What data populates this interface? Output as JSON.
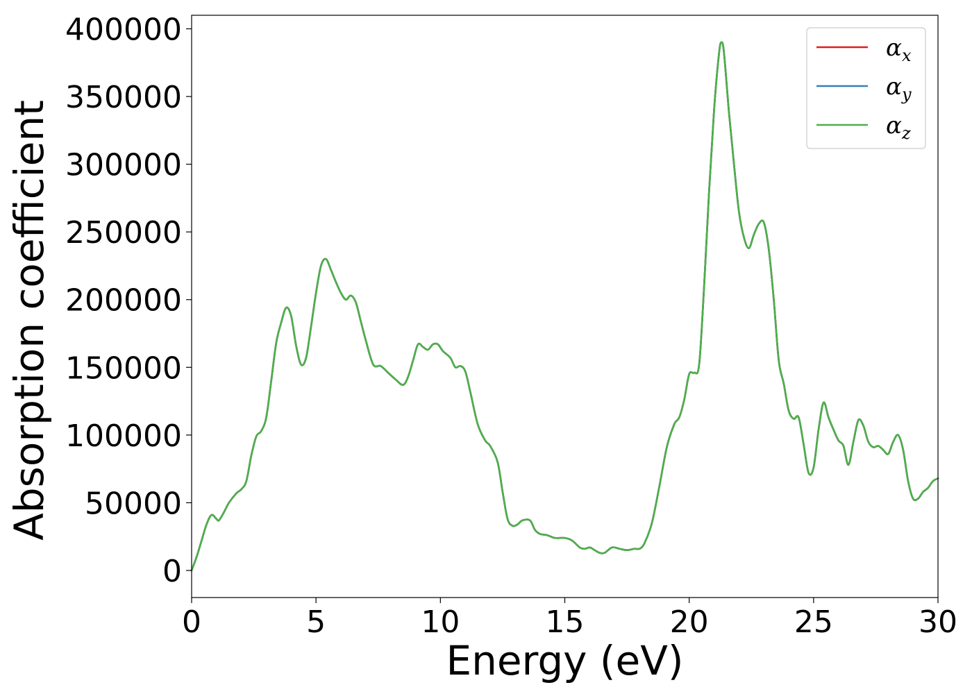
{
  "colors": {
    "alpha_x": "#e41a1c",
    "alpha_y": "#377eb8",
    "alpha_z": "#4daf4a"
  },
  "chart_data": {
    "type": "line",
    "title": "",
    "xlabel": "Energy (eV)",
    "ylabel": "Absorption coefficient",
    "xlim": [
      0,
      30
    ],
    "ylim": [
      -20000,
      410000
    ],
    "xticks": [
      0,
      5,
      10,
      15,
      20,
      25,
      30
    ],
    "xtick_labels": [
      "0",
      "5",
      "10",
      "15",
      "20",
      "25",
      "30"
    ],
    "yticks": [
      0,
      50000,
      100000,
      150000,
      200000,
      250000,
      300000,
      350000,
      400000
    ],
    "ytick_labels": [
      "0",
      "50000",
      "100000",
      "150000",
      "200000",
      "250000",
      "300000",
      "350000",
      "400000"
    ],
    "grid": false,
    "legend_position": "top-right",
    "x": [
      0,
      0.2,
      0.4,
      0.6,
      0.8,
      1.0,
      1.1,
      1.3,
      1.5,
      1.8,
      2.0,
      2.2,
      2.4,
      2.6,
      2.8,
      3.0,
      3.2,
      3.4,
      3.6,
      3.8,
      4.0,
      4.2,
      4.4,
      4.6,
      4.8,
      5.0,
      5.2,
      5.4,
      5.6,
      5.8,
      6.0,
      6.2,
      6.4,
      6.6,
      6.8,
      7.0,
      7.3,
      7.6,
      7.9,
      8.2,
      8.5,
      8.7,
      8.9,
      9.1,
      9.3,
      9.5,
      9.7,
      9.9,
      10.1,
      10.4,
      10.6,
      10.8,
      11.0,
      11.2,
      11.5,
      11.8,
      12.0,
      12.3,
      12.5,
      12.7,
      12.9,
      13.1,
      13.3,
      13.6,
      13.8,
      14.0,
      14.3,
      14.6,
      15.0,
      15.3,
      15.6,
      15.8,
      16.0,
      16.2,
      16.4,
      16.6,
      16.9,
      17.2,
      17.5,
      17.8,
      18.0,
      18.2,
      18.5,
      18.8,
      19.1,
      19.4,
      19.6,
      19.8,
      20.0,
      20.2,
      20.4,
      20.6,
      20.8,
      21.0,
      21.2,
      21.3,
      21.4,
      21.6,
      21.8,
      22.0,
      22.2,
      22.4,
      22.6,
      22.8,
      23.0,
      23.2,
      23.4,
      23.6,
      23.8,
      24.0,
      24.2,
      24.4,
      24.6,
      24.8,
      25.0,
      25.2,
      25.4,
      25.6,
      25.8,
      26.0,
      26.2,
      26.4,
      26.6,
      26.8,
      27.0,
      27.2,
      27.4,
      27.6,
      27.8,
      28.0,
      28.2,
      28.4,
      28.6,
      28.8,
      29.0,
      29.2,
      29.4,
      29.6,
      29.8,
      30.0
    ],
    "series": [
      {
        "name": "αx",
        "label_main": "α",
        "label_sub": "x",
        "color_key": "alpha_x",
        "values": [
          0,
          10000,
          22000,
          34000,
          41000,
          38000,
          37000,
          43000,
          50000,
          57000,
          60000,
          66000,
          85000,
          99000,
          103000,
          113000,
          140000,
          168000,
          183000,
          194000,
          188000,
          166000,
          152000,
          157000,
          180000,
          205000,
          225000,
          230000,
          222000,
          213000,
          205000,
          200000,
          203000,
          198000,
          184000,
          170000,
          152000,
          151000,
          146000,
          141000,
          137000,
          143000,
          155000,
          167000,
          165000,
          163000,
          167000,
          167000,
          162000,
          157000,
          150000,
          151000,
          147000,
          132000,
          108000,
          96000,
          92000,
          80000,
          58000,
          38000,
          33000,
          34000,
          37000,
          37000,
          30000,
          27000,
          26000,
          24000,
          24000,
          22000,
          17000,
          16000,
          17000,
          15000,
          13000,
          13000,
          17000,
          16000,
          15000,
          16000,
          16000,
          20000,
          35000,
          62000,
          91000,
          108000,
          113000,
          126000,
          145000,
          146000,
          152000,
          210000,
          280000,
          340000,
          382000,
          390000,
          382000,
          338000,
          300000,
          265000,
          246000,
          238000,
          248000,
          256000,
          257000,
          237000,
          200000,
          155000,
          138000,
          118000,
          112000,
          113000,
          93000,
          72000,
          76000,
          104000,
          124000,
          113000,
          104000,
          96000,
          92000,
          78000,
          95000,
          111000,
          107000,
          95000,
          91000,
          92000,
          89000,
          86000,
          95000,
          100000,
          89000,
          66000,
          53000,
          53000,
          58000,
          61000,
          66000,
          68000
        ]
      },
      {
        "name": "αy",
        "label_main": "α",
        "label_sub": "y",
        "color_key": "alpha_y",
        "values": [
          0,
          10000,
          22000,
          34000,
          41000,
          38000,
          37000,
          43000,
          50000,
          57000,
          60000,
          66000,
          85000,
          99000,
          103000,
          113000,
          140000,
          168000,
          183000,
          194000,
          188000,
          166000,
          152000,
          157000,
          180000,
          205000,
          225000,
          230000,
          222000,
          213000,
          205000,
          200000,
          203000,
          198000,
          184000,
          170000,
          152000,
          151000,
          146000,
          141000,
          137000,
          143000,
          155000,
          167000,
          165000,
          163000,
          167000,
          167000,
          162000,
          157000,
          150000,
          151000,
          147000,
          132000,
          108000,
          96000,
          92000,
          80000,
          58000,
          38000,
          33000,
          34000,
          37000,
          37000,
          30000,
          27000,
          26000,
          24000,
          24000,
          22000,
          17000,
          16000,
          17000,
          15000,
          13000,
          13000,
          17000,
          16000,
          15000,
          16000,
          16000,
          20000,
          35000,
          62000,
          91000,
          108000,
          113000,
          126000,
          145000,
          146000,
          152000,
          210000,
          280000,
          340000,
          382000,
          390000,
          382000,
          338000,
          300000,
          265000,
          246000,
          238000,
          248000,
          256000,
          257000,
          237000,
          200000,
          155000,
          138000,
          118000,
          112000,
          113000,
          93000,
          72000,
          76000,
          104000,
          124000,
          113000,
          104000,
          96000,
          92000,
          78000,
          95000,
          111000,
          107000,
          95000,
          91000,
          92000,
          89000,
          86000,
          95000,
          100000,
          89000,
          66000,
          53000,
          53000,
          58000,
          61000,
          66000,
          68000
        ]
      },
      {
        "name": "αz",
        "label_main": "α",
        "label_sub": "z",
        "color_key": "alpha_z",
        "values": [
          0,
          10000,
          22000,
          34000,
          41000,
          38000,
          37000,
          43000,
          50000,
          57000,
          60000,
          66000,
          85000,
          99000,
          103000,
          113000,
          140000,
          168000,
          183000,
          194000,
          188000,
          166000,
          152000,
          157000,
          180000,
          205000,
          225000,
          230000,
          222000,
          213000,
          205000,
          200000,
          203000,
          198000,
          184000,
          170000,
          152000,
          151000,
          146000,
          141000,
          137000,
          143000,
          155000,
          167000,
          165000,
          163000,
          167000,
          167000,
          162000,
          157000,
          150000,
          151000,
          147000,
          132000,
          108000,
          96000,
          92000,
          80000,
          58000,
          38000,
          33000,
          34000,
          37000,
          37000,
          30000,
          27000,
          26000,
          24000,
          24000,
          22000,
          17000,
          16000,
          17000,
          15000,
          13000,
          13000,
          17000,
          16000,
          15000,
          16000,
          16000,
          20000,
          35000,
          62000,
          91000,
          108000,
          113000,
          126000,
          145000,
          146000,
          152000,
          210000,
          280000,
          340000,
          382000,
          390000,
          382000,
          338000,
          300000,
          265000,
          246000,
          238000,
          248000,
          256000,
          257000,
          237000,
          200000,
          155000,
          138000,
          118000,
          112000,
          113000,
          93000,
          72000,
          76000,
          104000,
          124000,
          113000,
          104000,
          96000,
          92000,
          78000,
          95000,
          111000,
          107000,
          95000,
          91000,
          92000,
          89000,
          86000,
          95000,
          100000,
          89000,
          66000,
          53000,
          53000,
          58000,
          61000,
          66000,
          68000
        ]
      }
    ]
  }
}
